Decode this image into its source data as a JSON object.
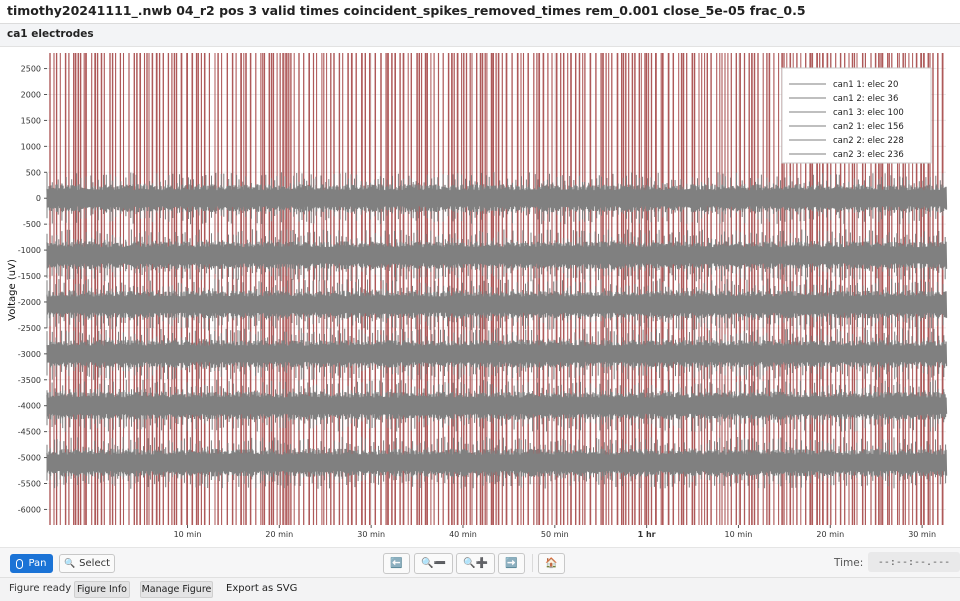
{
  "window": {
    "title": "timothy20241111_.nwb 04_r2 pos 3 valid times coincident_spikes_removed_times rem_0.001 close_5e-05 frac_0.5"
  },
  "panel": {
    "title": "ca1 electrodes"
  },
  "chart_data": {
    "type": "line",
    "ylabel": "Voltage (uV)",
    "xlabel": "",
    "ylim": [
      -6300,
      2800
    ],
    "y_ticks": [
      2500,
      2000,
      1500,
      1000,
      500,
      0,
      -500,
      -1000,
      -1500,
      -2000,
      -2500,
      -3000,
      -3500,
      -4000,
      -4500,
      -5000,
      -5500,
      -6000
    ],
    "x_ticks": [
      {
        "t": 10,
        "label": "10 min",
        "bold": false
      },
      {
        "t": 20,
        "label": "20 min",
        "bold": false
      },
      {
        "t": 30,
        "label": "30 min",
        "bold": false
      },
      {
        "t": 40,
        "label": "40 min",
        "bold": false
      },
      {
        "t": 50,
        "label": "50 min",
        "bold": false
      },
      {
        "t": 60,
        "label": "1 hr",
        "bold": true
      },
      {
        "t": 70,
        "label": "10 min",
        "bold": false
      },
      {
        "t": 80,
        "label": "20 min",
        "bold": false
      },
      {
        "t": 90,
        "label": "30 min",
        "bold": false
      }
    ],
    "xlim_minutes": [
      -5.3,
      92.6
    ],
    "grid": true,
    "legend_position": "top-right",
    "series": [
      {
        "name": "can1 1: elec 20",
        "baseline_uv": 0
      },
      {
        "name": "can1 2: elec 36",
        "baseline_uv": -1100
      },
      {
        "name": "can1 3: elec 100",
        "baseline_uv": -2050
      },
      {
        "name": "can2 1: elec 156",
        "baseline_uv": -3000
      },
      {
        "name": "can2 2: elec 228",
        "baseline_uv": -4000
      },
      {
        "name": "can2 3: elec 236",
        "baseline_uv": -5100
      }
    ],
    "colors": {
      "trace": "#808080",
      "removed_times": "#a03c3c",
      "legend_line": "#aaaaaa"
    }
  },
  "toolbar": {
    "pan_label": "Pan",
    "select_label": "Select",
    "pan_icon": "mouse-icon",
    "select_icon": "magnifier-icon",
    "nav_buttons": [
      {
        "name": "pan-left-button",
        "glyph": "⬅️"
      },
      {
        "name": "zoom-out-button",
        "glyph": "🔍➖"
      },
      {
        "name": "zoom-in-button",
        "glyph": "🔍➕"
      },
      {
        "name": "pan-right-button",
        "glyph": "➡️"
      },
      {
        "name": "home-button",
        "glyph": "🏠"
      }
    ],
    "time_label": "Time:",
    "time_value": "--:--:--.---"
  },
  "status": {
    "text": "Figure ready",
    "figure_info": "Figure Info",
    "manage_figure": "Manage Figure",
    "export_svg": "Export as SVG"
  }
}
